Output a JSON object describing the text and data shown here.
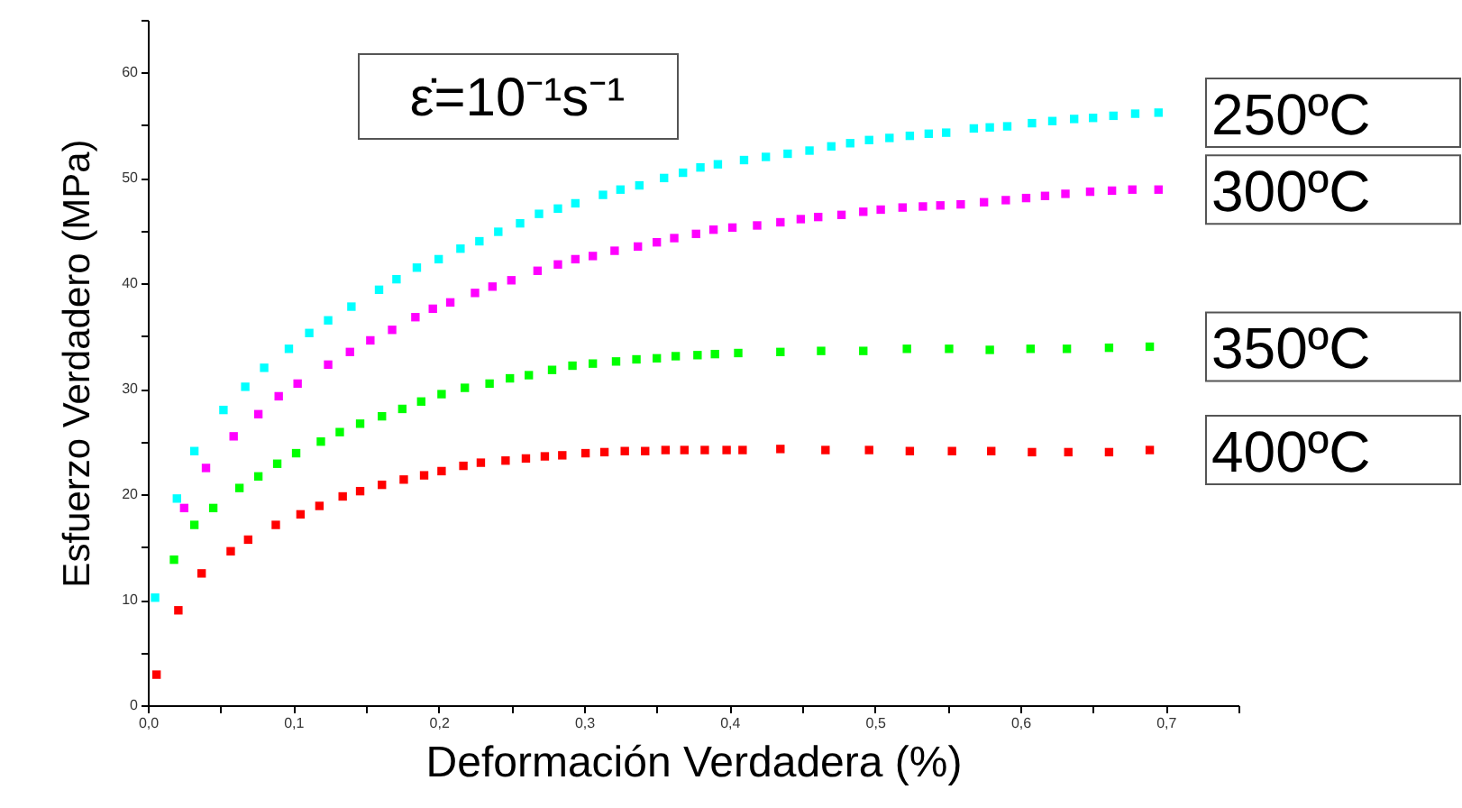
{
  "chart_data": {
    "type": "scatter",
    "xlabel": "Deformación Verdadera (%)",
    "ylabel": "Esfuerzo Verdadero (MPa)",
    "annotations": [
      "ε̇=10⁻¹s⁻¹"
    ],
    "marker": "square",
    "grid": false,
    "legend": false,
    "xlim": [
      0,
      0.75
    ],
    "ylim": [
      0,
      65
    ],
    "xticks": [
      {
        "value": 0,
        "label": "0,0"
      },
      {
        "value": 0.05,
        "label": null
      },
      {
        "value": 0.1,
        "label": "0,1"
      },
      {
        "value": 0.15,
        "label": null
      },
      {
        "value": 0.2,
        "label": "0,2"
      },
      {
        "value": 0.25,
        "label": null
      },
      {
        "value": 0.3,
        "label": "0,3"
      },
      {
        "value": 0.35,
        "label": null
      },
      {
        "value": 0.4,
        "label": "0,4"
      },
      {
        "value": 0.45,
        "label": null
      },
      {
        "value": 0.5,
        "label": "0,5"
      },
      {
        "value": 0.55,
        "label": null
      },
      {
        "value": 0.6,
        "label": "0,6"
      },
      {
        "value": 0.65,
        "label": null
      },
      {
        "value": 0.7,
        "label": "0,7"
      },
      {
        "value": 0.75,
        "label": null
      }
    ],
    "yticks": [
      0,
      {
        "value": 5,
        "label": null
      },
      10,
      {
        "value": 15,
        "label": null
      },
      20,
      {
        "value": 25,
        "label": null
      },
      30,
      {
        "value": 35,
        "label": null
      },
      40,
      {
        "value": 45,
        "label": null
      },
      50,
      {
        "value": 55,
        "label": null
      },
      60,
      {
        "value": 65,
        "label": null
      }
    ],
    "series": [
      {
        "name": "250ºC",
        "color": "#00ffff",
        "x": [
          0.005,
          0.02,
          0.032,
          0.052,
          0.067,
          0.08,
          0.097,
          0.111,
          0.124,
          0.14,
          0.159,
          0.171,
          0.185,
          0.2,
          0.215,
          0.228,
          0.241,
          0.256,
          0.269,
          0.282,
          0.294,
          0.313,
          0.325,
          0.338,
          0.355,
          0.368,
          0.38,
          0.392,
          0.41,
          0.425,
          0.44,
          0.455,
          0.47,
          0.483,
          0.496,
          0.51,
          0.524,
          0.537,
          0.549,
          0.568,
          0.579,
          0.591,
          0.608,
          0.622,
          0.637,
          0.65,
          0.664,
          0.679,
          0.695
        ],
        "values": [
          10.2,
          19.6,
          24.1,
          28,
          30.2,
          32,
          33.8,
          35.3,
          36.5,
          37.8,
          39.4,
          40.4,
          41.5,
          42.3,
          43.3,
          44,
          44.9,
          45.7,
          46.6,
          47.1,
          47.6,
          48.4,
          48.9,
          49.3,
          50,
          50.5,
          51,
          51.3,
          51.7,
          52,
          52.3,
          52.6,
          53,
          53.3,
          53.6,
          53.8,
          54,
          54.2,
          54.3,
          54.7,
          54.8,
          54.9,
          55.2,
          55.4,
          55.6,
          55.7,
          55.9,
          56.1,
          56.2
        ]
      },
      {
        "name": "300ºC",
        "color": "#ff00ff",
        "x": [
          0.025,
          0.04,
          0.059,
          0.076,
          0.09,
          0.103,
          0.124,
          0.139,
          0.153,
          0.168,
          0.184,
          0.196,
          0.208,
          0.225,
          0.237,
          0.25,
          0.268,
          0.282,
          0.294,
          0.306,
          0.321,
          0.337,
          0.35,
          0.362,
          0.377,
          0.389,
          0.402,
          0.419,
          0.435,
          0.449,
          0.461,
          0.477,
          0.492,
          0.504,
          0.519,
          0.533,
          0.545,
          0.559,
          0.575,
          0.59,
          0.604,
          0.617,
          0.631,
          0.648,
          0.663,
          0.677,
          0.695
        ],
        "values": [
          18.7,
          22.5,
          25.5,
          27.6,
          29.3,
          30.5,
          32.3,
          33.5,
          34.6,
          35.6,
          36.8,
          37.6,
          38.2,
          39.1,
          39.7,
          40.3,
          41.2,
          41.8,
          42.3,
          42.6,
          43.1,
          43.5,
          43.9,
          44.3,
          44.7,
          45.1,
          45.3,
          45.5,
          45.8,
          46.1,
          46.3,
          46.5,
          46.8,
          47,
          47.2,
          47.3,
          47.4,
          47.5,
          47.7,
          47.9,
          48.1,
          48.3,
          48.5,
          48.7,
          48.8,
          48.9,
          48.9
        ]
      },
      {
        "name": "350ºC",
        "color": "#00ff00",
        "x": [
          0.018,
          0.032,
          0.045,
          0.063,
          0.076,
          0.089,
          0.102,
          0.119,
          0.132,
          0.146,
          0.161,
          0.175,
          0.188,
          0.202,
          0.218,
          0.235,
          0.249,
          0.262,
          0.278,
          0.292,
          0.306,
          0.322,
          0.336,
          0.35,
          0.363,
          0.378,
          0.39,
          0.406,
          0.435,
          0.463,
          0.492,
          0.522,
          0.551,
          0.579,
          0.607,
          0.632,
          0.661,
          0.689
        ],
        "values": [
          13.8,
          17.1,
          18.7,
          20.6,
          21.7,
          22.9,
          23.9,
          25,
          25.9,
          26.7,
          27.4,
          28.1,
          28.8,
          29.5,
          30.1,
          30.5,
          31,
          31.3,
          31.8,
          32.2,
          32.4,
          32.6,
          32.8,
          32.9,
          33.1,
          33.2,
          33.3,
          33.4,
          33.5,
          33.6,
          33.6,
          33.8,
          33.8,
          33.7,
          33.8,
          33.8,
          33.9,
          34
        ]
      },
      {
        "name": "400ºC",
        "color": "#ff0000",
        "x": [
          0.006,
          0.021,
          0.037,
          0.057,
          0.069,
          0.088,
          0.105,
          0.118,
          0.134,
          0.146,
          0.161,
          0.176,
          0.19,
          0.202,
          0.217,
          0.229,
          0.246,
          0.26,
          0.273,
          0.285,
          0.301,
          0.314,
          0.328,
          0.342,
          0.356,
          0.369,
          0.383,
          0.398,
          0.409,
          0.435,
          0.466,
          0.496,
          0.524,
          0.553,
          0.58,
          0.608,
          0.633,
          0.661,
          0.689
        ],
        "values": [
          2.9,
          9,
          12.5,
          14.6,
          15.7,
          17.1,
          18.1,
          18.9,
          19.8,
          20.3,
          20.9,
          21.4,
          21.8,
          22.2,
          22.7,
          23,
          23.2,
          23.4,
          23.6,
          23.7,
          23.9,
          24,
          24.1,
          24.1,
          24.2,
          24.2,
          24.2,
          24.2,
          24.2,
          24.3,
          24.2,
          24.2,
          24.1,
          24.1,
          24.1,
          24,
          24,
          24,
          24.2
        ]
      }
    ]
  }
}
